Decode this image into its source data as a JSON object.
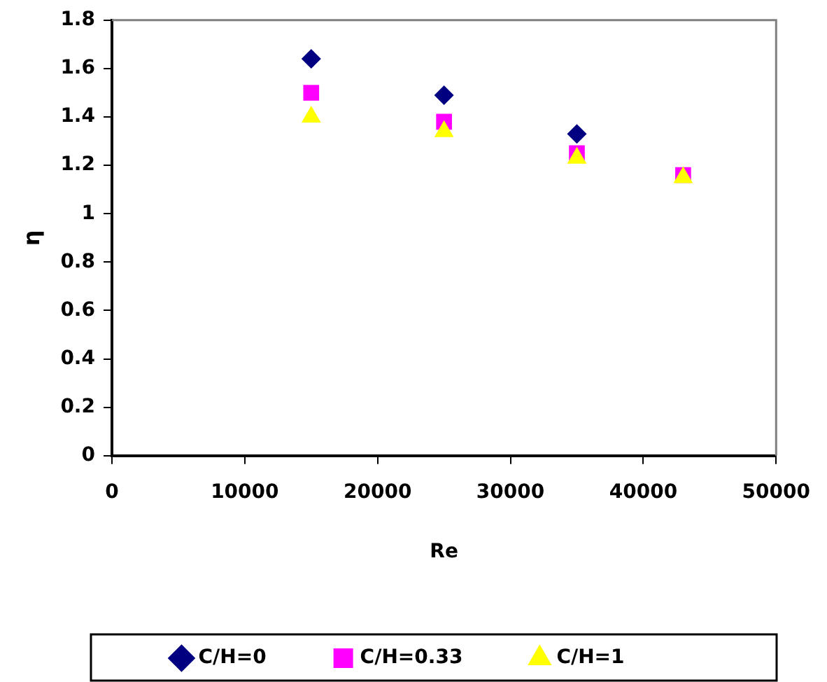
{
  "chart_data": {
    "type": "scatter",
    "xlabel": "Re",
    "ylabel": "η",
    "xlim": [
      0,
      50000
    ],
    "xticks": [
      0,
      10000,
      20000,
      30000,
      40000,
      50000
    ],
    "ylim": [
      0,
      1.8
    ],
    "yticks": [
      0,
      0.2,
      0.4,
      0.6,
      0.8,
      1,
      1.2,
      1.4,
      1.6,
      1.8
    ],
    "grid": false,
    "legend": "bottom",
    "series": [
      {
        "name": "C/H=0",
        "color": "#000080",
        "marker": "diamond",
        "x": [
          15000,
          25000,
          35000
        ],
        "values": [
          1.64,
          1.49,
          1.33
        ]
      },
      {
        "name": "C/H=0.33",
        "color": "#ff00ff",
        "marker": "square",
        "x": [
          15000,
          25000,
          35000,
          43000
        ],
        "values": [
          1.5,
          1.38,
          1.25,
          1.16
        ]
      },
      {
        "name": "C/H=1",
        "color": "#ffff00",
        "marker": "triangle",
        "x": [
          15000,
          25000,
          35000,
          43000
        ],
        "values": [
          1.4,
          1.34,
          1.23,
          1.15
        ]
      }
    ]
  }
}
